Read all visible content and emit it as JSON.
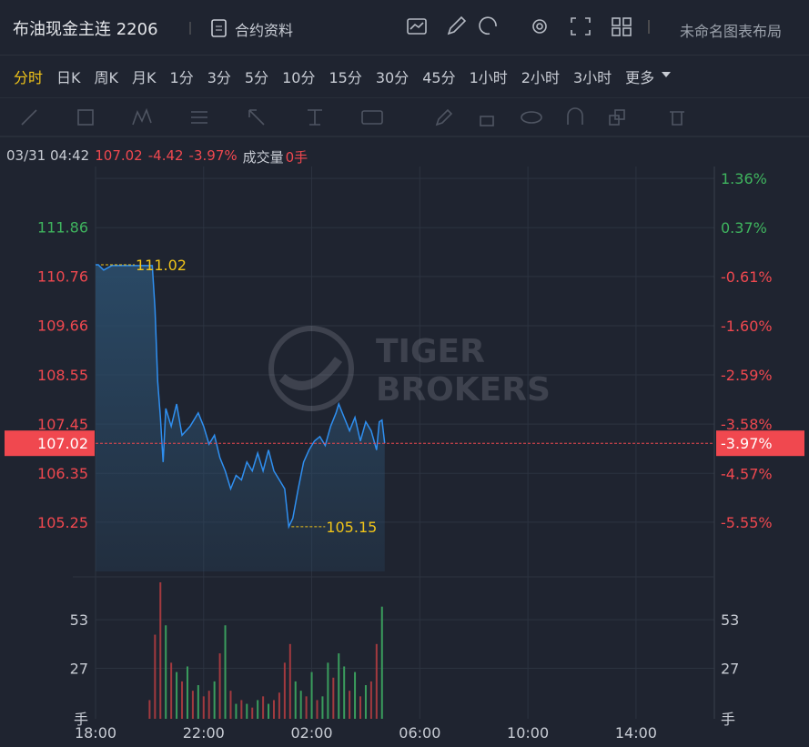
{
  "header": {
    "title": "布油现金主连 2206",
    "contract_info": "合约资料",
    "layout_name": "未命名图表布局"
  },
  "periods": {
    "items": [
      "分时",
      "日K",
      "周K",
      "月K",
      "1分",
      "3分",
      "5分",
      "10分",
      "15分",
      "30分",
      "45分",
      "1小时",
      "2小时",
      "3小时",
      "更多"
    ],
    "selected": 0
  },
  "quote": {
    "time": "03/31 04:42",
    "price": "107.02",
    "change": "-4.42",
    "change_pct": "-3.97%",
    "volume_label": "成交量",
    "volume": "0手"
  },
  "watermark": [
    "TIGER",
    "BROKERS"
  ],
  "chart_data": [
    {
      "type": "line",
      "color": "#2f8ff0",
      "grid": true,
      "x": [
        0,
        0.1,
        0.3,
        0.6,
        1.0,
        1.5,
        2.0,
        2.1,
        2.2,
        2.3,
        2.4,
        2.5,
        2.6,
        2.8,
        3.0,
        3.2,
        3.5,
        3.8,
        4.0,
        4.2,
        4.4,
        4.6,
        4.8,
        5.0,
        5.2,
        5.4,
        5.6,
        5.8,
        6.0,
        6.2,
        6.4,
        6.6,
        6.8,
        7.0,
        7.15,
        7.3,
        7.5,
        7.7,
        7.9,
        8.1,
        8.3,
        8.5,
        8.7,
        8.9,
        9.0,
        9.2,
        9.4,
        9.6,
        9.8,
        10.0,
        10.2,
        10.4,
        10.5,
        10.6,
        10.7
      ],
      "values": [
        111.02,
        111.02,
        110.9,
        111.0,
        111.0,
        111.0,
        111.0,
        111.0,
        110.03,
        108.4,
        107.6,
        106.6,
        107.8,
        107.4,
        107.9,
        107.2,
        107.4,
        107.7,
        107.4,
        107.0,
        107.2,
        106.7,
        106.4,
        106.0,
        106.3,
        106.2,
        106.6,
        106.4,
        106.8,
        106.4,
        106.87,
        106.4,
        106.2,
        106.0,
        105.15,
        105.34,
        106.0,
        106.6,
        106.87,
        107.07,
        107.17,
        106.97,
        107.4,
        107.7,
        107.9,
        107.6,
        107.3,
        107.6,
        107.07,
        107.5,
        107.3,
        106.87,
        107.5,
        107.54,
        107.02
      ],
      "xlim": [
        0,
        22.9
      ],
      "xticks": [
        {
          "value": 0,
          "label": "18:00"
        },
        {
          "value": 4,
          "label": "22:00"
        },
        {
          "value": 8,
          "label": "02:00"
        },
        {
          "value": 12,
          "label": "06:00"
        },
        {
          "value": 16,
          "label": "10:00"
        },
        {
          "value": 20,
          "label": "14:00"
        }
      ],
      "ylim": [
        104.15,
        113.22
      ],
      "yticks": [
        111.86,
        110.76,
        109.66,
        108.55,
        107.45,
        106.35,
        105.25
      ],
      "ytick_colors": [
        "#3fb45e",
        "#f0484f",
        "#f0484f",
        "#f0484f",
        "#f0484f",
        "#f0484f",
        "#f0484f"
      ],
      "y2lim": [
        -6.54,
        1.6
      ],
      "y2ticks": [
        {
          "value": 1.36,
          "label": "1.36%"
        },
        {
          "value": 0.37,
          "label": "0.37%"
        },
        {
          "value": -0.61,
          "label": "-0.61%"
        },
        {
          "value": -1.6,
          "label": "-1.60%"
        },
        {
          "value": -2.59,
          "label": "-2.59%"
        },
        {
          "value": -3.58,
          "label": "-3.58%"
        },
        {
          "value": -4.57,
          "label": "-4.57%"
        },
        {
          "value": -5.55,
          "label": "-5.55%"
        }
      ],
      "current": 107.02,
      "annotations": [
        {
          "x": 0.1,
          "value": 111.02
        },
        {
          "x": 7.15,
          "value": 105.15
        }
      ]
    },
    {
      "type": "bar",
      "x": [
        2.0,
        2.2,
        2.4,
        2.6,
        2.8,
        3.0,
        3.2,
        3.4,
        3.6,
        3.8,
        4.0,
        4.2,
        4.4,
        4.6,
        4.8,
        5.0,
        5.2,
        5.4,
        5.6,
        5.8,
        6.0,
        6.2,
        6.4,
        6.6,
        6.8,
        7.0,
        7.2,
        7.4,
        7.6,
        7.8,
        8.0,
        8.2,
        8.4,
        8.6,
        8.8,
        9.0,
        9.2,
        9.4,
        9.6,
        9.8,
        10.0,
        10.2,
        10.4,
        10.6
      ],
      "values": [
        10,
        45,
        73,
        50,
        30,
        25,
        20,
        28,
        15,
        18,
        12,
        15,
        20,
        35,
        50,
        15,
        8,
        10,
        8,
        6,
        10,
        12,
        8,
        10,
        14,
        30,
        40,
        20,
        15,
        12,
        25,
        10,
        12,
        30,
        22,
        35,
        28,
        15,
        25,
        12,
        18,
        20,
        40,
        60
      ],
      "colors": [
        "#a33a3f",
        "#a33a3f",
        "#a33a3f",
        "#3a9d5d",
        "#a33a3f",
        "#3a9d5d",
        "#a33a3f",
        "#3a9d5d",
        "#a33a3f",
        "#3a9d5d",
        "#a33a3f",
        "#a33a3f",
        "#3a9d5d",
        "#a33a3f",
        "#3a9d5d",
        "#a33a3f",
        "#3a9d5d",
        "#a33a3f",
        "#3a9d5d",
        "#a33a3f",
        "#3a9d5d",
        "#a33a3f",
        "#3a9d5d",
        "#a33a3f",
        "#a33a3f",
        "#a33a3f",
        "#a33a3f",
        "#3a9d5d",
        "#3a9d5d",
        "#a33a3f",
        "#3a9d5d",
        "#a33a3f",
        "#3a9d5d",
        "#3a9d5d",
        "#a33a3f",
        "#3a9d5d",
        "#3a9d5d",
        "#a33a3f",
        "#3a9d5d",
        "#a33a3f",
        "#3a9d5d",
        "#a33a3f",
        "#a33a3f",
        "#3a9d5d"
      ],
      "xlim": [
        0,
        22.9
      ],
      "ylim": [
        0,
        73
      ],
      "yticks": [
        53,
        27,
        {
          "value": 0,
          "label": "手"
        }
      ]
    }
  ]
}
